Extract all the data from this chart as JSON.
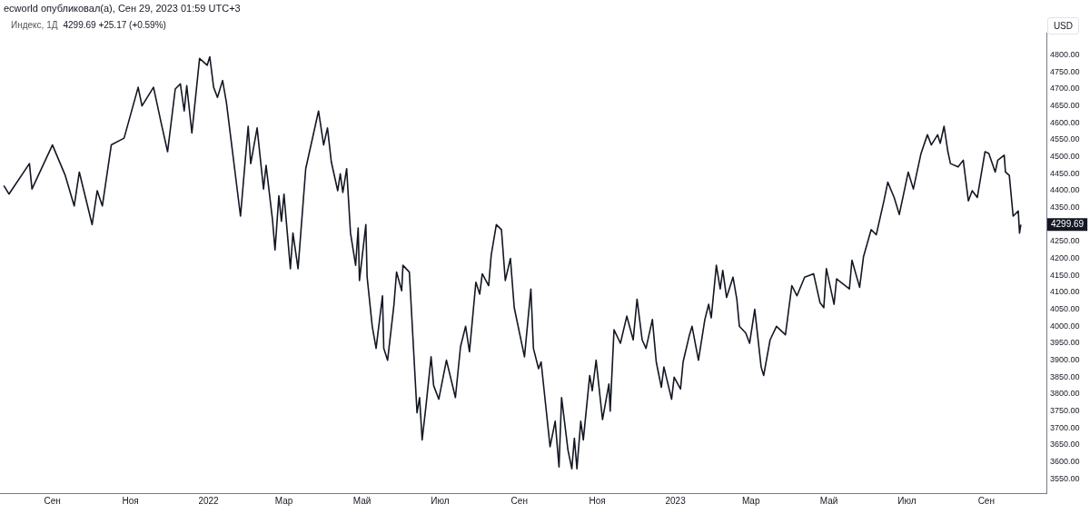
{
  "chart_data": {
    "type": "line",
    "title": "Индекс, 1Д",
    "subtitle": "4299.69 +25.17 (+0.59%)",
    "ylabel": "USD",
    "annotations": [
      "ecworld опубликовал(а), Сен 29, 2023 01:59 UTC+3",
      "4299.69"
    ],
    "x": [
      "2021-07-25",
      "2021-07-29",
      "2021-08-14",
      "2021-08-16",
      "2021-09-01",
      "2021-09-11",
      "2021-09-18",
      "2021-09-22",
      "2021-10-02",
      "2021-10-06",
      "2021-10-10",
      "2021-10-17",
      "2021-10-27",
      "2021-11-07",
      "2021-11-10",
      "2021-11-19",
      "2021-11-25",
      "2021-11-30",
      "2021-12-06",
      "2021-12-10",
      "2021-12-13",
      "2021-12-15",
      "2021-12-19",
      "2021-12-25",
      "2021-12-31",
      "2022-01-02",
      "2022-01-05",
      "2022-01-08",
      "2022-01-12",
      "2022-01-15",
      "2022-01-26",
      "2022-02-01",
      "2022-02-03",
      "2022-02-08",
      "2022-02-13",
      "2022-02-15",
      "2022-02-20",
      "2022-02-22",
      "2022-02-25",
      "2022-02-27",
      "2022-03-01",
      "2022-03-06",
      "2022-03-08",
      "2022-03-12",
      "2022-03-18",
      "2022-03-28",
      "2022-04-01",
      "2022-04-04",
      "2022-04-07",
      "2022-04-12",
      "2022-04-14",
      "2022-04-16",
      "2022-04-19",
      "2022-04-22",
      "2022-04-26",
      "2022-04-28",
      "2022-04-29",
      "2022-05-04",
      "2022-05-05",
      "2022-05-09",
      "2022-05-12",
      "2022-05-17",
      "2022-05-18",
      "2022-05-21",
      "2022-05-26",
      "2022-05-28",
      "2022-06-01",
      "2022-06-02",
      "2022-06-07",
      "2022-06-13",
      "2022-06-15",
      "2022-06-17",
      "2022-06-20",
      "2022-06-24",
      "2022-06-26",
      "2022-06-30",
      "2022-07-06",
      "2022-07-13",
      "2022-07-17",
      "2022-07-21",
      "2022-07-24",
      "2022-07-29",
      "2022-08-01",
      "2022-08-03",
      "2022-08-08",
      "2022-08-10",
      "2022-08-14",
      "2022-08-18",
      "2022-08-21",
      "2022-08-25",
      "2022-08-28",
      "2022-09-05",
      "2022-09-10",
      "2022-09-12",
      "2022-09-16",
      "2022-09-18",
      "2022-09-25",
      "2022-09-29",
      "2022-10-02",
      "2022-10-04",
      "2022-10-09",
      "2022-10-12",
      "2022-10-14",
      "2022-10-16",
      "2022-10-19",
      "2022-10-21",
      "2022-10-26",
      "2022-10-28",
      "2022-10-31",
      "2022-11-05",
      "2022-11-10",
      "2022-11-11",
      "2022-11-14",
      "2022-11-19",
      "2022-11-24",
      "2022-11-29",
      "2022-12-02",
      "2022-12-06",
      "2022-12-09",
      "2022-12-14",
      "2022-12-17",
      "2022-12-21",
      "2022-12-23",
      "2022-12-29",
      "2022-12-31",
      "2023-01-05",
      "2023-01-07",
      "2023-01-12",
      "2023-01-14",
      "2023-01-19",
      "2023-01-24",
      "2023-01-27",
      "2023-01-29",
      "2023-02-02",
      "2023-02-05",
      "2023-02-07",
      "2023-02-10",
      "2023-02-15",
      "2023-02-18",
      "2023-02-20",
      "2023-02-25",
      "2023-02-28",
      "2023-03-04",
      "2023-03-09",
      "2023-03-11",
      "2023-03-16",
      "2023-03-21",
      "2023-03-28",
      "2023-04-02",
      "2023-04-06",
      "2023-04-12",
      "2023-04-19",
      "2023-04-24",
      "2023-04-27",
      "2023-04-29",
      "2023-05-05",
      "2023-05-07",
      "2023-05-17",
      "2023-05-19",
      "2023-05-25",
      "2023-05-28",
      "2023-06-03",
      "2023-06-07",
      "2023-06-13",
      "2023-06-16",
      "2023-06-21",
      "2023-06-25",
      "2023-07-02",
      "2023-07-06",
      "2023-07-12",
      "2023-07-17",
      "2023-07-20",
      "2023-07-25",
      "2023-07-27",
      "2023-07-30",
      "2023-08-02",
      "2023-08-04",
      "2023-08-10",
      "2023-08-14",
      "2023-08-18",
      "2023-08-21",
      "2023-08-25",
      "2023-08-31",
      "2023-09-03",
      "2023-09-08",
      "2023-09-10",
      "2023-09-15",
      "2023-09-16",
      "2023-09-19",
      "2023-09-22",
      "2023-09-26",
      "2023-09-27",
      "2023-09-28"
    ],
    "series": [
      {
        "color": "#131722",
        "values": [
          4415,
          4390,
          4480,
          4405,
          4535,
          4445,
          4355,
          4455,
          4300,
          4400,
          4355,
          4535,
          4555,
          4705,
          4650,
          4705,
          4600,
          4515,
          4700,
          4715,
          4635,
          4710,
          4570,
          4790,
          4770,
          4795,
          4705,
          4675,
          4725,
          4660,
          4325,
          4590,
          4480,
          4585,
          4405,
          4475,
          4315,
          4225,
          4385,
          4310,
          4390,
          4170,
          4275,
          4170,
          4465,
          4635,
          4535,
          4585,
          4485,
          4400,
          4450,
          4395,
          4465,
          4275,
          4180,
          4290,
          4135,
          4300,
          4145,
          4000,
          3935,
          4090,
          3935,
          3900,
          4065,
          4160,
          4105,
          4180,
          4160,
          3745,
          3790,
          3665,
          3765,
          3910,
          3825,
          3785,
          3900,
          3790,
          3940,
          4000,
          3925,
          4130,
          4095,
          4155,
          4120,
          4210,
          4300,
          4285,
          4135,
          4200,
          4055,
          3910,
          4110,
          3935,
          3875,
          3895,
          3645,
          3720,
          3585,
          3790,
          3635,
          3580,
          3670,
          3580,
          3720,
          3665,
          3855,
          3810,
          3900,
          3725,
          3830,
          3750,
          3990,
          3950,
          4030,
          3960,
          4080,
          3960,
          3935,
          4020,
          3895,
          3820,
          3880,
          3785,
          3850,
          3815,
          3895,
          3975,
          4000,
          3900,
          4020,
          4065,
          4025,
          4180,
          4110,
          4165,
          4085,
          4145,
          4080,
          4000,
          3980,
          3950,
          4050,
          3880,
          3855,
          3960,
          4000,
          3975,
          4120,
          4090,
          4145,
          4155,
          4070,
          4055,
          4170,
          4065,
          4140,
          4110,
          4195,
          4115,
          4205,
          4285,
          4270,
          4370,
          4425,
          4380,
          4330,
          4455,
          4405,
          4510,
          4565,
          4535,
          4565,
          4540,
          4590,
          4515,
          4480,
          4470,
          4490,
          4370,
          4400,
          4380,
          4515,
          4510,
          4455,
          4490,
          4505,
          4455,
          4445,
          4325,
          4340,
          4275,
          4300
        ]
      }
    ],
    "xlim": [
      "2021-07-22",
      "2023-10-18"
    ],
    "xticks": [
      {
        "value": "2021-09-01",
        "label": "Сен"
      },
      {
        "value": "2021-11-01",
        "label": "Ноя"
      },
      {
        "value": "2022-01-01",
        "label": "2022"
      },
      {
        "value": "2022-03-01",
        "label": "Мар"
      },
      {
        "value": "2022-05-01",
        "label": "Май"
      },
      {
        "value": "2022-07-01",
        "label": "Июл"
      },
      {
        "value": "2022-09-01",
        "label": "Сен"
      },
      {
        "value": "2022-11-01",
        "label": "Ноя"
      },
      {
        "value": "2023-01-01",
        "label": "2023"
      },
      {
        "value": "2023-03-01",
        "label": "Мар"
      },
      {
        "value": "2023-05-01",
        "label": "Май"
      },
      {
        "value": "2023-07-01",
        "label": "Июл"
      },
      {
        "value": "2023-09-01",
        "label": "Сен"
      }
    ],
    "ylim": [
      3508,
      4866
    ],
    "yticks": [
      {
        "value": 3550,
        "label": "3550.00"
      },
      {
        "value": 3600,
        "label": "3600.00"
      },
      {
        "value": 3650,
        "label": "3650.00"
      },
      {
        "value": 3700,
        "label": "3700.00"
      },
      {
        "value": 3750,
        "label": "3750.00"
      },
      {
        "value": 3800,
        "label": "3800.00"
      },
      {
        "value": 3850,
        "label": "3850.00"
      },
      {
        "value": 3900,
        "label": "3900.00"
      },
      {
        "value": 3950,
        "label": "3950.00"
      },
      {
        "value": 4000,
        "label": "4000.00"
      },
      {
        "value": 4050,
        "label": "4050.00"
      },
      {
        "value": 4100,
        "label": "4100.00"
      },
      {
        "value": 4150,
        "label": "4150.00"
      },
      {
        "value": 4200,
        "label": "4200.00"
      },
      {
        "value": 4250,
        "label": "4250.00"
      },
      {
        "value": 4350,
        "label": "4350.00"
      },
      {
        "value": 4400,
        "label": "4400.00"
      },
      {
        "value": 4450,
        "label": "4450.00"
      },
      {
        "value": 4500,
        "label": "4500.00"
      },
      {
        "value": 4550,
        "label": "4550.00"
      },
      {
        "value": 4600,
        "label": "4600.00"
      },
      {
        "value": 4650,
        "label": "4650.00"
      },
      {
        "value": 4700,
        "label": "4700.00"
      },
      {
        "value": 4750,
        "label": "4750.00"
      },
      {
        "value": 4800,
        "label": "4800.00"
      }
    ],
    "grid": false,
    "legend": false,
    "marker": "none",
    "line_style": "solid"
  }
}
